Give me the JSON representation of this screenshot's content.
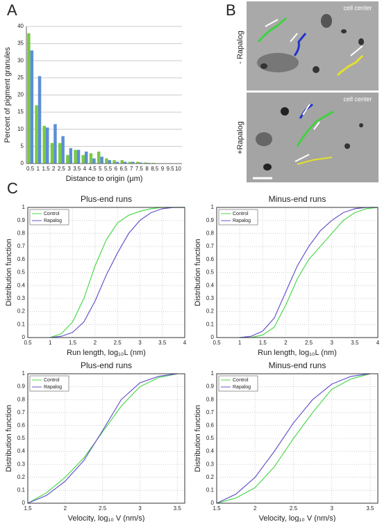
{
  "panels": {
    "a": "A",
    "b": "B",
    "c": "C",
    "b_top_side": "- Rapalog",
    "b_bottom_side": "+Rapalog",
    "b_top_note": "cell center",
    "b_bottom_note": "cell center"
  },
  "chart_data": [
    {
      "type": "bar",
      "xlabel": "Distance to origin (μm)",
      "ylabel": "Percent of pigment granules",
      "categories": [
        "0.5",
        "1",
        "1.5",
        "2",
        "2.5",
        "3",
        "3.5",
        "4",
        "4.5",
        "5",
        "5.5",
        "6",
        "6.5",
        "7",
        "7.5",
        "8",
        "8.5",
        "9",
        "9.5",
        "10"
      ],
      "series": [
        {
          "color": "#7ac943",
          "values": [
            38,
            17,
            11,
            6,
            6,
            2.5,
            4,
            2.5,
            3,
            3.5,
            1.5,
            1,
            1,
            0.5,
            0.5,
            0.3,
            0.2,
            0.1,
            0.1,
            0.1
          ]
        },
        {
          "color": "#5b8fd6",
          "values": [
            33,
            25.5,
            10.5,
            11.5,
            8,
            4.5,
            4,
            3.5,
            1.5,
            2,
            1,
            0.5,
            0.5,
            0.5,
            0.3,
            0.2,
            0.1,
            0.1,
            0.1,
            0.1
          ]
        }
      ],
      "ylim": [
        0,
        40
      ],
      "yticks": [
        0,
        5,
        10,
        15,
        20,
        25,
        30,
        35,
        40
      ],
      "grid": true
    },
    {
      "type": "line",
      "title": "Plus-end runs",
      "xlabel": "Run length, log₁₀L (nm)",
      "ylabel": "Distribution function",
      "x": [
        1,
        1.25,
        1.5,
        1.75,
        2,
        2.25,
        2.5,
        2.75,
        3,
        3.25,
        3.5,
        3.75,
        4
      ],
      "series": [
        {
          "name": "Control",
          "color": "#4dd84d",
          "values": [
            0,
            0.03,
            0.12,
            0.3,
            0.55,
            0.75,
            0.88,
            0.94,
            0.97,
            0.99,
            1,
            1,
            1
          ]
        },
        {
          "name": "Rapalog",
          "color": "#6655cc",
          "values": [
            0,
            0.01,
            0.04,
            0.12,
            0.28,
            0.48,
            0.65,
            0.8,
            0.9,
            0.96,
            0.99,
            1,
            1
          ]
        }
      ],
      "xlim": [
        0.5,
        4
      ],
      "xticks": [
        0.5,
        1,
        1.5,
        2,
        2.5,
        3,
        3.5,
        4
      ],
      "ylim": [
        0,
        1
      ],
      "yticks": [
        0,
        0.1,
        0.2,
        0.3,
        0.4,
        0.5,
        0.6,
        0.7,
        0.8,
        0.9,
        1
      ],
      "grid": true,
      "legend": "upper left"
    },
    {
      "type": "line",
      "title": "Minus-end runs",
      "xlabel": "Run length, log₁₀L (nm)",
      "ylabel": "Distribution function",
      "x": [
        1,
        1.25,
        1.5,
        1.75,
        2,
        2.25,
        2.5,
        2.75,
        3,
        3.25,
        3.5,
        3.75,
        4
      ],
      "series": [
        {
          "name": "Control",
          "color": "#4dd84d",
          "values": [
            0,
            0,
            0.02,
            0.08,
            0.25,
            0.45,
            0.6,
            0.7,
            0.8,
            0.9,
            0.96,
            0.99,
            1
          ]
        },
        {
          "name": "Rapalog",
          "color": "#6655cc",
          "values": [
            0,
            0.01,
            0.05,
            0.15,
            0.35,
            0.55,
            0.7,
            0.82,
            0.9,
            0.96,
            0.99,
            1,
            1
          ]
        }
      ],
      "xlim": [
        0.5,
        4
      ],
      "xticks": [
        0.5,
        1,
        1.5,
        2,
        2.5,
        3,
        3.5,
        4
      ],
      "ylim": [
        0,
        1
      ],
      "yticks": [
        0,
        0.1,
        0.2,
        0.3,
        0.4,
        0.5,
        0.6,
        0.7,
        0.8,
        0.9,
        1
      ],
      "grid": true,
      "legend": "upper left"
    },
    {
      "type": "line",
      "title": "Plus-end runs",
      "xlabel": "Velocity, log₁₀ V (nm/s)",
      "ylabel": "Distribution function",
      "x": [
        1.5,
        1.75,
        2,
        2.25,
        2.5,
        2.75,
        3,
        3.25,
        3.5
      ],
      "series": [
        {
          "name": "Control",
          "color": "#4dd84d",
          "values": [
            0,
            0.08,
            0.2,
            0.35,
            0.55,
            0.75,
            0.9,
            0.97,
            1
          ]
        },
        {
          "name": "Rapalog",
          "color": "#6655cc",
          "values": [
            0,
            0.06,
            0.17,
            0.33,
            0.56,
            0.8,
            0.93,
            0.98,
            1
          ]
        }
      ],
      "xlim": [
        1.5,
        3.6
      ],
      "xticks": [
        1.5,
        2,
        2.5,
        3,
        3.5
      ],
      "ylim": [
        0,
        1
      ],
      "yticks": [
        0,
        0.1,
        0.2,
        0.3,
        0.4,
        0.5,
        0.6,
        0.7,
        0.8,
        0.9,
        1
      ],
      "grid": true,
      "legend": "upper left"
    },
    {
      "type": "line",
      "title": "Minus-end runs",
      "xlabel": "Velocity, log₁₀ V (nm/s)",
      "ylabel": "Distribution function",
      "x": [
        1.5,
        1.75,
        2,
        2.25,
        2.5,
        2.75,
        3,
        3.25,
        3.5
      ],
      "series": [
        {
          "name": "Control",
          "color": "#4dd84d",
          "values": [
            0,
            0.04,
            0.12,
            0.28,
            0.5,
            0.7,
            0.88,
            0.96,
            1
          ]
        },
        {
          "name": "Rapalog",
          "color": "#6655cc",
          "values": [
            0,
            0.07,
            0.2,
            0.4,
            0.62,
            0.8,
            0.92,
            0.98,
            1
          ]
        }
      ],
      "xlim": [
        1.5,
        3.6
      ],
      "xticks": [
        1.5,
        2,
        2.5,
        3,
        3.5
      ],
      "ylim": [
        0,
        1
      ],
      "yticks": [
        0,
        0.1,
        0.2,
        0.3,
        0.4,
        0.5,
        0.6,
        0.7,
        0.8,
        0.9,
        1
      ],
      "grid": true,
      "legend": "upper left"
    }
  ]
}
